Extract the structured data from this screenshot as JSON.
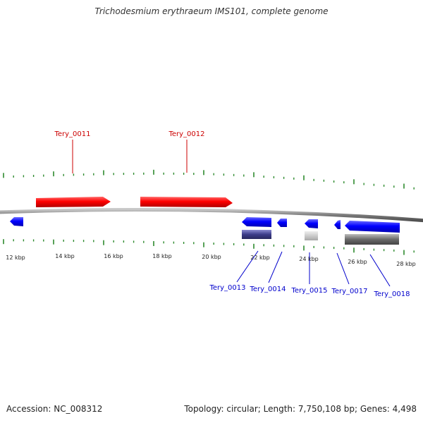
{
  "title": "Trichodesmium erythraeum IMS101, complete genome",
  "footer": {
    "accession": "Accession: NC_008312",
    "summary": "Topology: circular; Length: 7,750,108 bp; Genes: 4,498"
  },
  "colors": {
    "forward_gene": "#ff0000",
    "reverse_gene": "#0000ff",
    "backbone": "#808080",
    "tick": "#2e8b2e",
    "forward_label": "#cc0000",
    "reverse_label": "#0000cc"
  },
  "scale_labels": [
    "12 kbp",
    "14 kbp",
    "16 kbp",
    "18 kbp",
    "20 kbp",
    "22 kbp",
    "24 kbp",
    "26 kbp",
    "28 kbp"
  ],
  "forward_genes": [
    {
      "id": "Tery_0011",
      "label": "Tery_0011"
    },
    {
      "id": "Tery_0012",
      "label": "Tery_0012"
    }
  ],
  "reverse_genes": [
    {
      "id": "Tery_0010",
      "label": ""
    },
    {
      "id": "Tery_0013",
      "label": "Tery_0013"
    },
    {
      "id": "Tery_0014",
      "label": "Tery_0014"
    },
    {
      "id": "Tery_0015",
      "label": "Tery_0015"
    },
    {
      "id": "Tery_0017",
      "label": "Tery_0017"
    },
    {
      "id": "Tery_0018",
      "label": "Tery_0018"
    }
  ]
}
